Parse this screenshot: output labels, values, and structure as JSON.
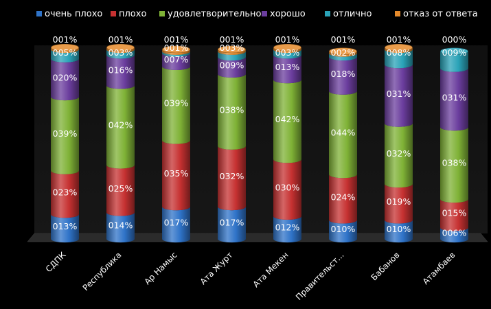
{
  "chart_data": {
    "type": "bar",
    "stacked": true,
    "legend_position": "top",
    "grid": false,
    "ylim": [
      0,
      100
    ],
    "categories": [
      "СДПК",
      "Республика",
      "Ар Намыс",
      "Ата Журт",
      "Ата Мекен",
      "Правительст...",
      "Бабанов",
      "Атамбаев"
    ],
    "series": [
      {
        "name": "очень плохо",
        "color": "#2f73c8",
        "values": [
          13,
          14,
          17,
          17,
          12,
          10,
          10,
          6
        ],
        "labels": [
          "013%",
          "014%",
          "017%",
          "017%",
          "012%",
          "010%",
          "010%",
          "006%"
        ]
      },
      {
        "name": "плохо",
        "color": "#c63131",
        "values": [
          23,
          25,
          35,
          32,
          30,
          24,
          19,
          15
        ],
        "labels": [
          "023%",
          "025%",
          "035%",
          "032%",
          "030%",
          "024%",
          "019%",
          "015%"
        ]
      },
      {
        "name": "удовлетворительно",
        "color": "#7fb236",
        "values": [
          39,
          42,
          39,
          38,
          42,
          44,
          32,
          38
        ],
        "labels": [
          "039%",
          "042%",
          "039%",
          "038%",
          "042%",
          "044%",
          "032%",
          "038%"
        ]
      },
      {
        "name": "хорошо",
        "color": "#6b3d9e",
        "values": [
          20,
          16,
          7,
          9,
          13,
          18,
          31,
          31
        ],
        "labels": [
          "020%",
          "016%",
          "007%",
          "009%",
          "013%",
          "018%",
          "031%",
          "031%"
        ]
      },
      {
        "name": "отлично",
        "color": "#2aa3b8",
        "values": [
          5,
          3,
          1,
          3,
          3,
          2,
          8,
          9
        ],
        "labels": [
          "005%",
          "003%",
          "001%",
          "003%",
          "003%",
          "002%",
          "008%",
          "009%"
        ]
      },
      {
        "name": "отказ от ответа",
        "color": "#e58a2b",
        "values": [
          1,
          1,
          1,
          1,
          1,
          1,
          1,
          0
        ],
        "labels": [
          "001%",
          "001%",
          "001%",
          "001%",
          "001%",
          "001%",
          "001%",
          "000%"
        ]
      }
    ]
  }
}
